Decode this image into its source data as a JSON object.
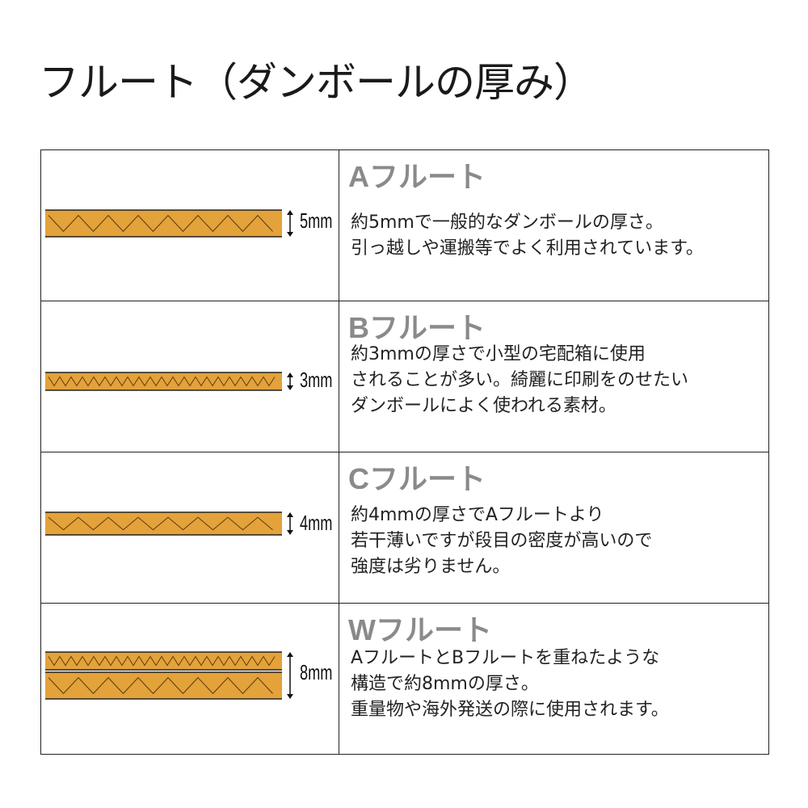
{
  "title": "フルート（ダンボールの厚み）",
  "colors": {
    "board": "#E3A23A",
    "line": "#222222",
    "heading": "#8a8a8a"
  },
  "rows": [
    {
      "name": "Aフルート",
      "thickness": "5mm",
      "layers": [
        "A"
      ],
      "desc": [
        "約5mmで一般的なダンボールの厚さ。",
        "引っ越しや運搬等でよく利用されています。"
      ]
    },
    {
      "name": "Bフルート",
      "thickness": "3mm",
      "layers": [
        "B"
      ],
      "desc": [
        "約3mmの厚さで小型の宅配箱に使用",
        "されることが多い。綺麗に印刷をのせたい",
        "ダンボールによく使われる素材。"
      ]
    },
    {
      "name": "Cフルート",
      "thickness": "4mm",
      "layers": [
        "C"
      ],
      "desc": [
        "約4mmの厚さでAフルートより",
        "若干薄いですが段目の密度が高いので",
        "強度は劣りません。"
      ]
    },
    {
      "name": "Wフルート",
      "thickness": "8mm",
      "layers": [
        "B",
        "A"
      ],
      "desc": [
        "AフルートとBフルートを重ねたような",
        "構造で約8mmの厚さ。",
        "重量物や海外発送の際に使用されます。"
      ]
    }
  ]
}
